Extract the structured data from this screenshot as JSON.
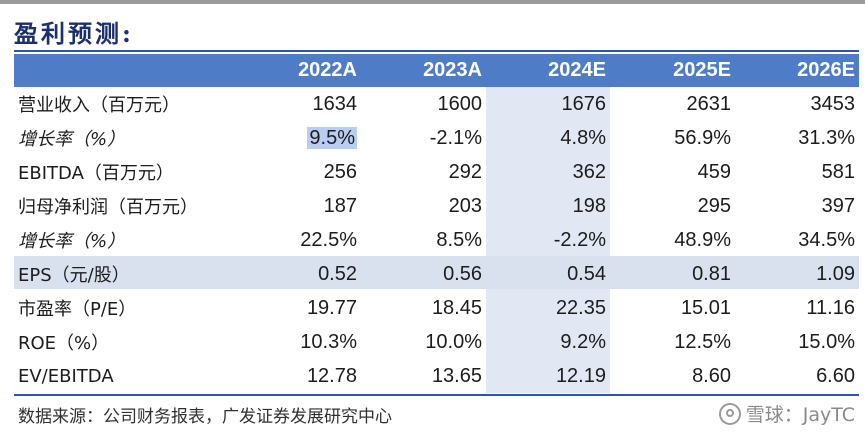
{
  "title": "盈利预测:",
  "table": {
    "headers": [
      "",
      "2022A",
      "2023A",
      "2024E",
      "2025E",
      "2026E"
    ],
    "rows": [
      {
        "label": "营业收入（百万元）",
        "italic": false,
        "values": [
          "1634",
          "1600",
          "1676",
          "2631",
          "3453"
        ]
      },
      {
        "label": "增长率（%）",
        "italic": true,
        "values": [
          "9.5%",
          "-2.1%",
          "4.8%",
          "56.9%",
          "31.3%"
        ]
      },
      {
        "label": "EBITDA（百万元）",
        "italic": false,
        "values": [
          "256",
          "292",
          "362",
          "459",
          "581"
        ]
      },
      {
        "label": "归母净利润（百万元）",
        "italic": false,
        "values": [
          "187",
          "203",
          "198",
          "295",
          "397"
        ]
      },
      {
        "label": "增长率（%）",
        "italic": true,
        "values": [
          "22.5%",
          "8.5%",
          "-2.2%",
          "48.9%",
          "34.5%"
        ]
      },
      {
        "label": "EPS（元/股）",
        "italic": false,
        "values": [
          "0.52",
          "0.56",
          "0.54",
          "0.81",
          "1.09"
        ]
      },
      {
        "label": "市盈率（P/E）",
        "italic": false,
        "values": [
          "19.77",
          "18.45",
          "22.35",
          "15.01",
          "11.16"
        ]
      },
      {
        "label": "ROE（%）",
        "italic": false,
        "values": [
          "10.3%",
          "10.0%",
          "9.2%",
          "12.5%",
          "15.0%"
        ]
      },
      {
        "label": "EV/EBITDA",
        "italic": false,
        "values": [
          "12.78",
          "13.65",
          "12.19",
          "8.60",
          "6.60"
        ]
      }
    ]
  },
  "source": "数据来源：公司财务报表，广发证券发展研究中心",
  "watermark": {
    "text": "雪球：JayTC",
    "icon": "snowball-logo-icon"
  },
  "colors": {
    "header_bg": "#4f7cc6",
    "title": "#1a2f6b",
    "shade": "#d9e1ef",
    "selection": "#b9cdf3"
  }
}
